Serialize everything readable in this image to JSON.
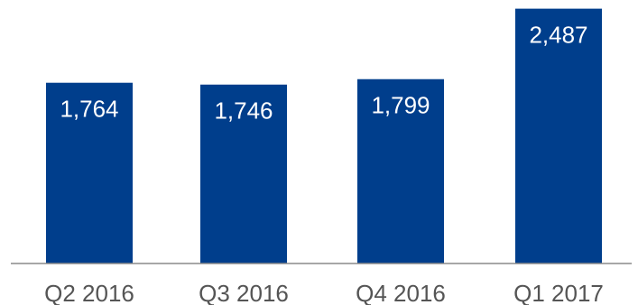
{
  "chart_data": {
    "type": "bar",
    "categories": [
      "Q2 2016",
      "Q3 2016",
      "Q4 2016",
      "Q1 2017"
    ],
    "values": [
      1764,
      1746,
      1799,
      2487
    ],
    "data_labels": [
      "1,764",
      "1,746",
      "1,799",
      "2,487"
    ],
    "ylim": [
      0,
      2510
    ],
    "grid": false,
    "legend": "none"
  },
  "colors": {
    "bar": "#003E8C",
    "baseline": "#8a8a8a",
    "bar_label": "#ffffff",
    "category_label": "#555555"
  }
}
